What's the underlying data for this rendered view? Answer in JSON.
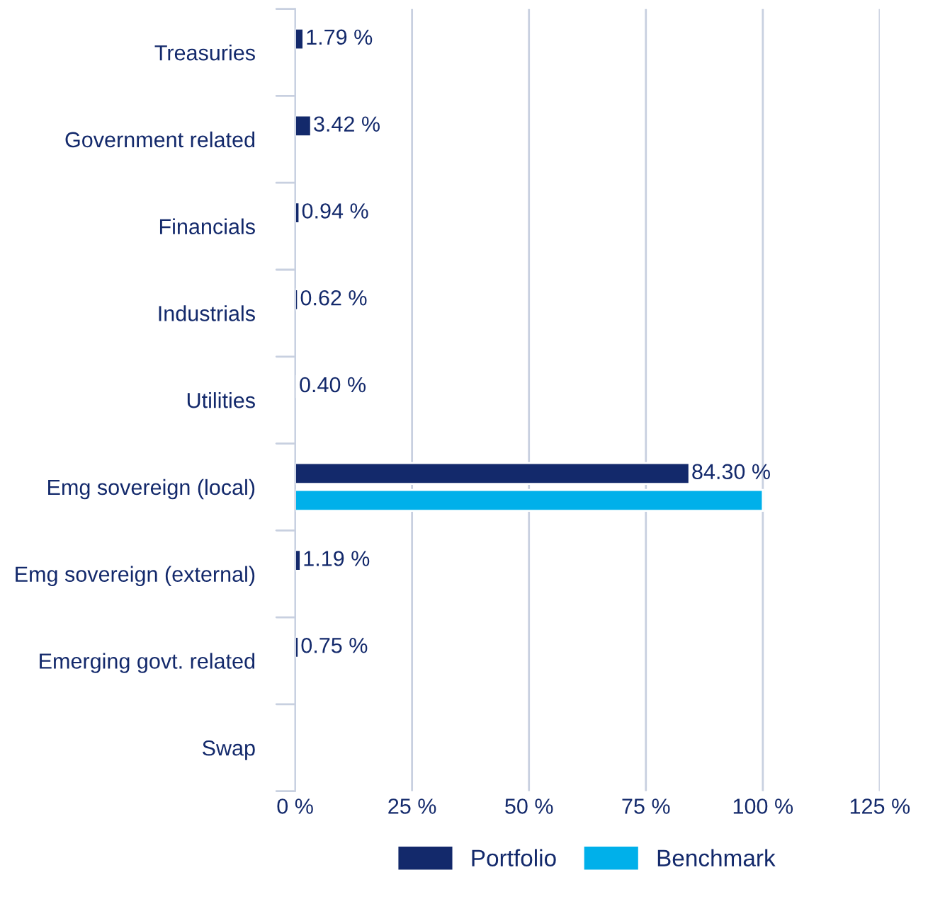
{
  "chart_data": {
    "type": "bar",
    "orientation": "horizontal",
    "categories": [
      "Treasuries",
      "Government related",
      "Financials",
      "Industrials",
      "Utilities",
      "Emg sovereign (local)",
      "Emg sovereign (external)",
      "Emerging govt. related",
      "Swap"
    ],
    "series": [
      {
        "name": "Portfolio",
        "color": "#13296b",
        "values": [
          1.79,
          3.42,
          0.94,
          0.62,
          0.4,
          84.3,
          1.19,
          0.75,
          null
        ],
        "value_labels": [
          "1.79 %",
          "3.42 %",
          "0.94 %",
          "0.62 %",
          "0.40 %",
          "84.30 %",
          "1.19 %",
          "0.75 %",
          null
        ]
      },
      {
        "name": "Benchmark",
        "color": "#00b0ea",
        "values": [
          null,
          null,
          null,
          null,
          null,
          100,
          null,
          null,
          null
        ]
      }
    ],
    "xlim": [
      0,
      125
    ],
    "xticks": [
      {
        "value": 0,
        "label": "0 %"
      },
      {
        "value": 25,
        "label": "25 %"
      },
      {
        "value": 50,
        "label": "50 %"
      },
      {
        "value": 75,
        "label": "75 %"
      },
      {
        "value": 100,
        "label": "100 %"
      },
      {
        "value": 125,
        "label": "125 %"
      }
    ],
    "grid": "x",
    "legend": "bottom"
  }
}
